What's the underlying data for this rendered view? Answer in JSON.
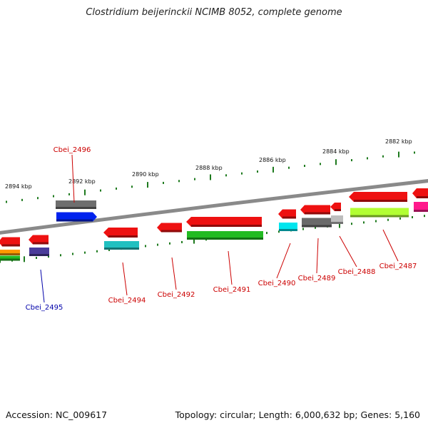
{
  "title": "Clostridium beijerinckii NCIMB 8052, complete genome",
  "footer": {
    "accession": "Accession: NC_009617",
    "summary": "Topology: circular; Length: 6,000,632 bp; Genes: 5,160"
  },
  "colors": {
    "backbone": "#8a8a8a",
    "tick": "#1e7a1e",
    "gene_label": "#cc0000",
    "highlight_label": "#0000aa"
  },
  "scale_labels": [
    "2894 kbp",
    "2892 kbp",
    "2890 kbp",
    "2888 kbp",
    "2886 kbp",
    "2884 kbp",
    "2882 kbp"
  ],
  "genes": [
    {
      "id": "Cbei_2496",
      "highlight": false
    },
    {
      "id": "Cbei_2495",
      "highlight": true
    },
    {
      "id": "Cbei_2494",
      "highlight": false
    },
    {
      "id": "Cbei_2492",
      "highlight": false
    },
    {
      "id": "Cbei_2491",
      "highlight": false
    },
    {
      "id": "Cbei_2490",
      "highlight": false
    },
    {
      "id": "Cbei_2489",
      "highlight": false
    },
    {
      "id": "Cbei_2488",
      "highlight": false
    },
    {
      "id": "Cbei_2487",
      "highlight": false
    }
  ]
}
